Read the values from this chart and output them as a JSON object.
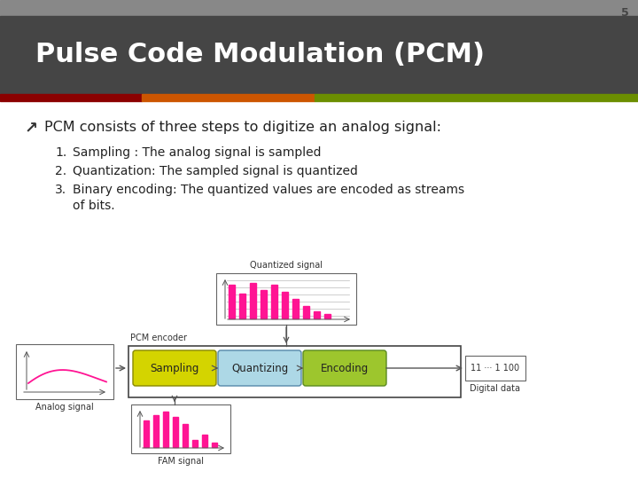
{
  "slide_number": "5",
  "title": "Pulse Code Modulation (PCM)",
  "title_bg_color": "#454545",
  "title_text_color": "#ffffff",
  "bar1_color": "#8B0000",
  "bar2_color": "#CC5500",
  "bar3_color": "#6B8E00",
  "slide_bg_color": "#ffffff",
  "bullet_symbol": "↗",
  "bullet_text": "PCM consists of three steps to digitize an analog signal:",
  "items": [
    "Sampling : The analog signal is sampled",
    "Quantization: The sampled signal is quantized",
    "Binary encoding: The quantized values are encoded as streams\nof bits."
  ],
  "diagram_label_analog": "Analog signal",
  "diagram_label_pcm": "PCM encoder",
  "diagram_label_quantized": "Quantized signal",
  "diagram_label_fam": "FAM signal",
  "diagram_label_digital": "Digital data",
  "box_sampling_color": "#D4D400",
  "box_quantizing_color": "#ADD8E6",
  "box_encoding_color": "#9DC62D",
  "pink_color": "#FF1493"
}
